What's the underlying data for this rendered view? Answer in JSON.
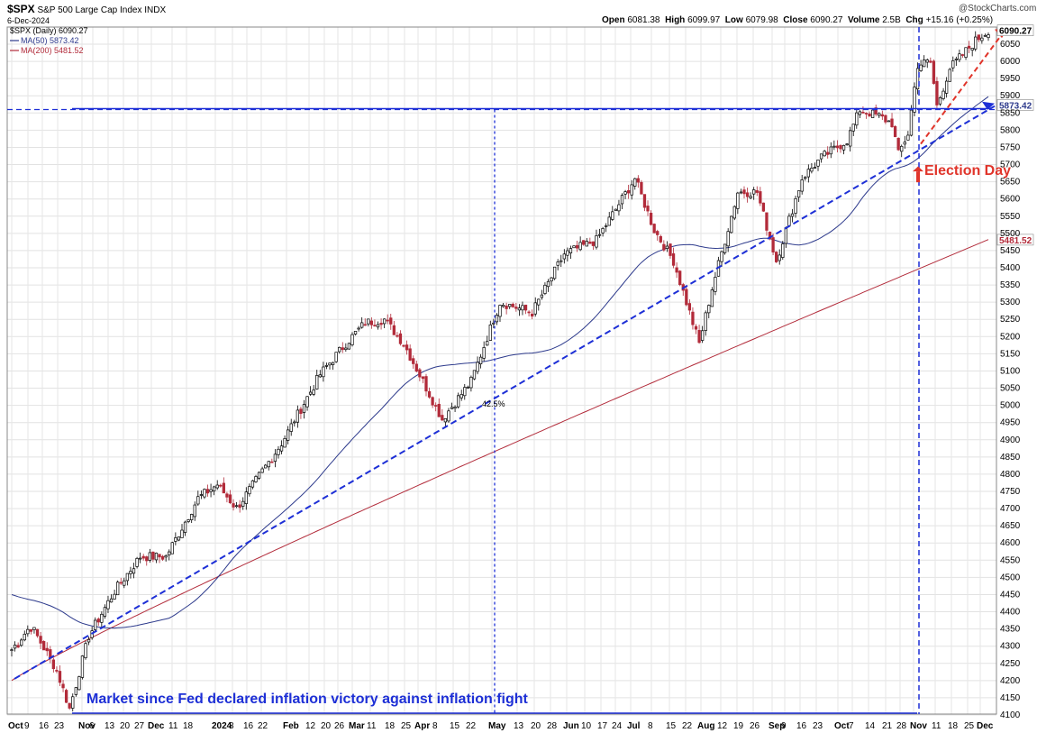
{
  "header": {
    "symbol": "$SPX",
    "name": "S&P 500 Large Cap Index",
    "exchange": "INDX",
    "date": "6-Dec-2024",
    "watermark": "@StockCharts.com",
    "ohlc": {
      "open_label": "Open",
      "open": "6081.38",
      "high_label": "High",
      "high": "6099.97",
      "low_label": "Low",
      "low": "6079.98",
      "close_label": "Close",
      "close": "6090.27",
      "volume_label": "Volume",
      "volume": "2.5B",
      "chg_label": "Chg",
      "chg": "+15.16 (+0.25%)"
    }
  },
  "legend": [
    {
      "text": "$SPX (Daily) 6090.27",
      "color": "#000000"
    },
    {
      "text": "MA(50) 5873.42",
      "color": "#2d3a8c"
    },
    {
      "text": "MA(200) 5481.52",
      "color": "#b22b3a"
    }
  ],
  "annotations": {
    "election": "Election Day",
    "market_since": "Market since Fed declared inflation victory against inflation fight",
    "pct": "42.5%"
  },
  "chart_data": {
    "type": "candlestick",
    "ylim": [
      4100,
      6110
    ],
    "y_ticks": [
      4100,
      4150,
      4200,
      4250,
      4300,
      4350,
      4400,
      4450,
      4500,
      4550,
      4600,
      4650,
      4700,
      4750,
      4800,
      4850,
      4900,
      4950,
      5000,
      5050,
      5100,
      5150,
      5200,
      5250,
      5300,
      5350,
      5400,
      5450,
      5500,
      5550,
      5600,
      5650,
      5700,
      5750,
      5800,
      5850,
      5900,
      5950,
      6000,
      6050
    ],
    "x_ticks": [
      "Oct",
      "9",
      "16",
      "23",
      "Nov",
      "6",
      "13",
      "20",
      "27",
      "Dec",
      "11",
      "18",
      "2024",
      "8",
      "16",
      "22",
      "Feb",
      "12",
      "20",
      "26",
      "Mar",
      "11",
      "18",
      "25",
      "Apr",
      "8",
      "15",
      "22",
      "May",
      "13",
      "20",
      "28",
      "Jun",
      "10",
      "17",
      "24",
      "Jul",
      "8",
      "15",
      "22",
      "Aug",
      "12",
      "19",
      "26",
      "Sep",
      "9",
      "16",
      "23",
      "Oct",
      "7",
      "14",
      "21",
      "28",
      "Nov",
      "11",
      "18",
      "25",
      "Dec"
    ],
    "price_labels": {
      "last": "6090.27",
      "ma50": "5873.42",
      "ma200": "5481.52"
    },
    "key_points": [
      {
        "label": "Oct 2023 low",
        "value": 4117
      },
      {
        "label": "Dec 2023 close",
        "value": 4770
      },
      {
        "label": "Mar 2024 high",
        "value": 5260
      },
      {
        "label": "Apr 2024 low",
        "value": 4953
      },
      {
        "label": "Jul 2024 high",
        "value": 5670
      },
      {
        "label": "Aug 2024 low",
        "value": 5120
      },
      {
        "label": "Oct 2024 high",
        "value": 5878
      },
      {
        "label": "Election Day",
        "value": 5730
      },
      {
        "label": "Dec 6 2024 close",
        "value": 6090.27
      }
    ],
    "series": [
      {
        "name": "MA(50)",
        "last": 5873.42
      },
      {
        "name": "MA(200)",
        "last": 5481.52
      }
    ],
    "horizontal_line": 5860,
    "bottom_line": 4110
  }
}
